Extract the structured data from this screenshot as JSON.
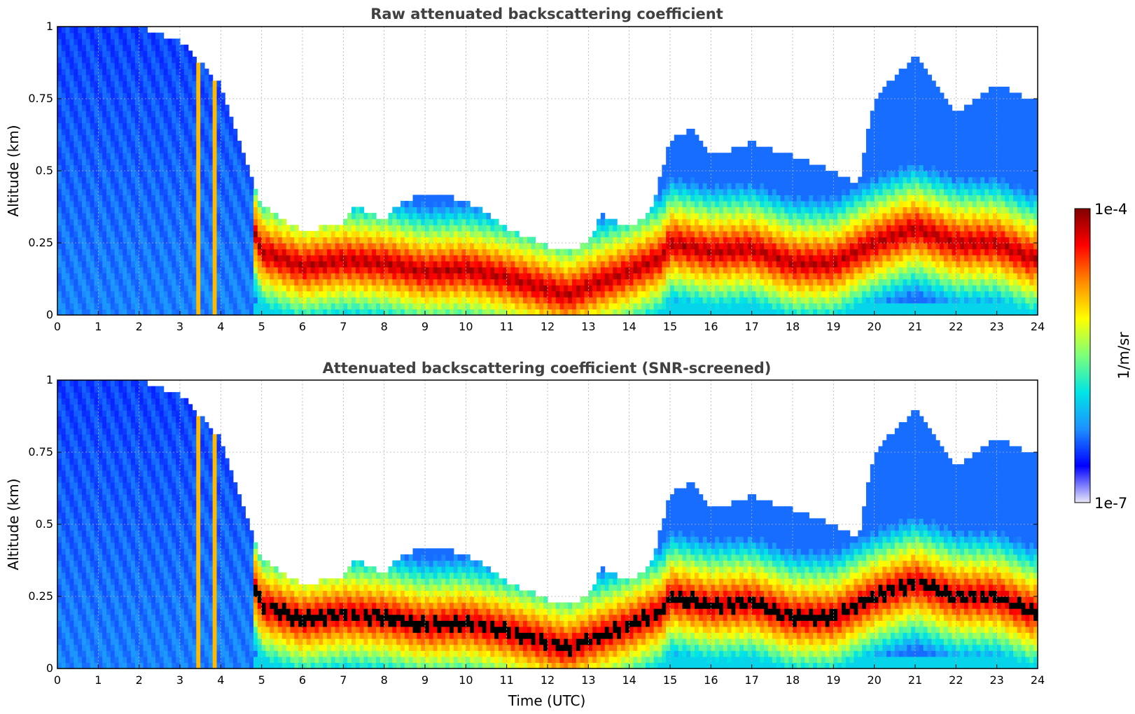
{
  "figure": {
    "colorbar": {
      "max_label": "1e-4",
      "min_label": "1e-7",
      "unit_label": "1/m/sr",
      "min_value": 1e-07,
      "max_value": 0.0001,
      "scale": "log",
      "colormap": [
        "#e8e8f8",
        "#0000ff",
        "#1e90ff",
        "#00e5e5",
        "#7dff7a",
        "#ffff00",
        "#ff8c00",
        "#ff0000",
        "#800000"
      ]
    },
    "xlabel": "Time (UTC)"
  },
  "chart_data": [
    {
      "type": "heatmap",
      "title": "Raw attenuated backscattering coefficient",
      "xlabel": "",
      "ylabel": "Altitude (km)",
      "xlim": [
        0,
        24
      ],
      "ylim": [
        0,
        1
      ],
      "x_ticks": [
        "0",
        "1",
        "2",
        "3",
        "4",
        "5",
        "6",
        "7",
        "8",
        "9",
        "10",
        "11",
        "12",
        "13",
        "14",
        "15",
        "16",
        "17",
        "18",
        "19",
        "20",
        "21",
        "22",
        "23",
        "24"
      ],
      "y_ticks": [
        "0",
        "0.25",
        "0.5",
        "0.75",
        "1"
      ],
      "grid": true,
      "aerosol_layer_top_km": {
        "time_utc": [
          0,
          1,
          2,
          3,
          4,
          4.8,
          5,
          6,
          7,
          7.3,
          8,
          8.5,
          9,
          10,
          11,
          12,
          12.5,
          13,
          13.3,
          14,
          14.5,
          15,
          15.5,
          16,
          17,
          18,
          19,
          19.6,
          20,
          21,
          22,
          23,
          23.8
        ],
        "altitude_km": [
          1.0,
          1.0,
          1.0,
          0.95,
          0.8,
          0.45,
          0.38,
          0.29,
          0.32,
          0.38,
          0.33,
          0.4,
          0.42,
          0.4,
          0.3,
          0.24,
          0.22,
          0.25,
          0.35,
          0.3,
          0.35,
          0.6,
          0.65,
          0.55,
          0.6,
          0.55,
          0.5,
          0.45,
          0.75,
          0.9,
          0.7,
          0.8,
          0.75
        ]
      },
      "peak_layer_km": {
        "time_utc": [
          4.8,
          5,
          6,
          7,
          8,
          9,
          10,
          11,
          12,
          12.5,
          13,
          14,
          14.8,
          15,
          16,
          17,
          18,
          19,
          20,
          21,
          22,
          23,
          23.8
        ],
        "altitude_km": [
          0.3,
          0.22,
          0.17,
          0.19,
          0.18,
          0.15,
          0.16,
          0.13,
          0.09,
          0.07,
          0.1,
          0.15,
          0.2,
          0.25,
          0.22,
          0.23,
          0.18,
          0.18,
          0.25,
          0.3,
          0.25,
          0.25,
          0.2
        ]
      }
    },
    {
      "type": "heatmap",
      "title": "Attenuated backscattering coefficient (SNR-screened)",
      "xlabel": "Time (UTC)",
      "ylabel": "Altitude (km)",
      "xlim": [
        0,
        24
      ],
      "ylim": [
        0,
        1
      ],
      "x_ticks": [
        "0",
        "1",
        "2",
        "3",
        "4",
        "5",
        "6",
        "7",
        "8",
        "9",
        "10",
        "11",
        "12",
        "13",
        "14",
        "15",
        "16",
        "17",
        "18",
        "19",
        "20",
        "21",
        "22",
        "23",
        "24"
      ],
      "y_ticks": [
        "0",
        "0.25",
        "0.5",
        "0.75",
        "1"
      ],
      "grid": true,
      "aerosol_layer_top_km": {
        "time_utc": [
          0,
          1,
          2,
          3,
          4,
          4.8,
          5,
          6,
          7,
          7.3,
          8,
          8.5,
          9,
          10,
          11,
          12,
          12.5,
          13,
          13.3,
          14,
          14.5,
          15,
          15.5,
          16,
          17,
          18,
          19,
          19.6,
          20,
          21,
          22,
          23,
          23.8
        ],
        "altitude_km": [
          1.0,
          1.0,
          1.0,
          0.95,
          0.8,
          0.45,
          0.38,
          0.29,
          0.32,
          0.38,
          0.33,
          0.4,
          0.42,
          0.4,
          0.3,
          0.24,
          0.22,
          0.25,
          0.35,
          0.3,
          0.35,
          0.6,
          0.65,
          0.55,
          0.6,
          0.55,
          0.5,
          0.45,
          0.75,
          0.9,
          0.7,
          0.8,
          0.75
        ]
      },
      "peak_layer_km": {
        "time_utc": [
          4.8,
          5,
          6,
          7,
          8,
          9,
          10,
          11,
          12,
          12.5,
          13,
          14,
          14.8,
          15,
          16,
          17,
          18,
          19,
          20,
          21,
          22,
          23,
          23.8
        ],
        "altitude_km": [
          0.3,
          0.22,
          0.17,
          0.19,
          0.18,
          0.15,
          0.16,
          0.13,
          0.09,
          0.07,
          0.1,
          0.15,
          0.2,
          0.25,
          0.22,
          0.23,
          0.18,
          0.18,
          0.25,
          0.3,
          0.25,
          0.25,
          0.2
        ]
      }
    }
  ]
}
